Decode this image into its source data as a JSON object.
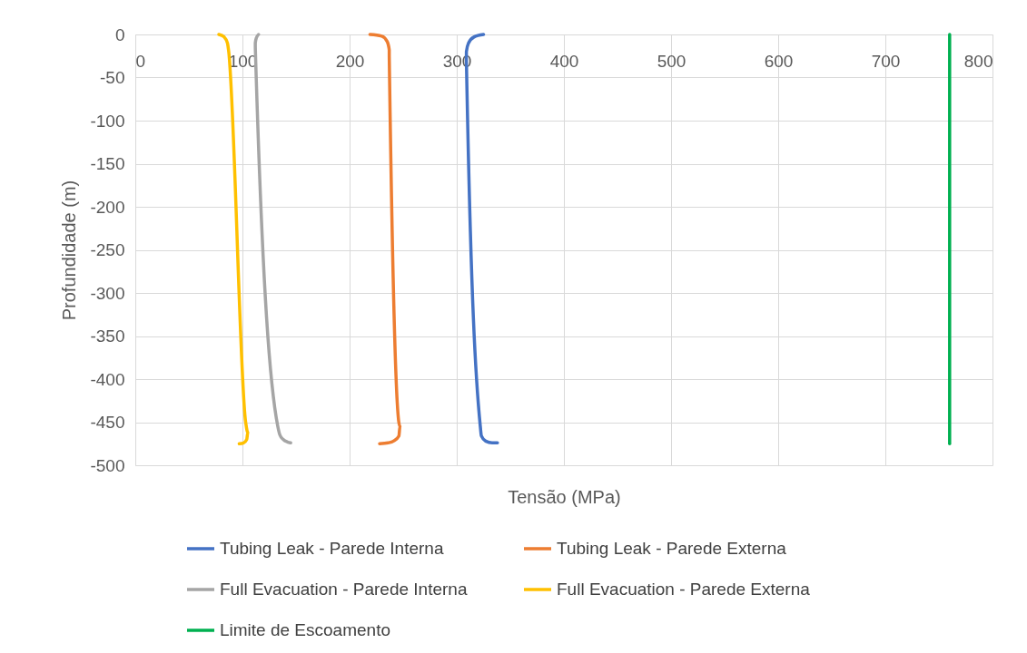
{
  "chart_data": {
    "type": "line",
    "xlabel": "Tensão (MPa)",
    "ylabel": "Profundidade (m)",
    "xlim": [
      0,
      800
    ],
    "xticks": [
      0,
      100,
      200,
      300,
      400,
      500,
      600,
      700,
      800
    ],
    "ylim": [
      -500,
      0
    ],
    "yticks": [
      -500,
      -450,
      -400,
      -350,
      -300,
      -250,
      -200,
      -150,
      -100,
      -50,
      0
    ],
    "grid": true,
    "legend": "bottom",
    "marker": "none",
    "line_style": "solid",
    "series": [
      {
        "name": "Tubing Leak - Parede Interna",
        "color": "#4472c4",
        "x": [
          325,
          316,
          311,
          309,
          309,
          322,
          323,
          327,
          333,
          338
        ],
        "values": [
          0,
          -3,
          -10,
          -20,
          -30,
          -455,
          -466,
          -472,
          -474,
          -474
        ]
      },
      {
        "name": "Tubing Leak - Parede Externa",
        "color": "#ed7d31",
        "x": [
          219,
          230,
          235,
          237,
          237,
          247,
          246,
          241,
          236,
          228
        ],
        "values": [
          0,
          -2,
          -8,
          -18,
          -25,
          -455,
          -466,
          -472,
          -474,
          -475
        ]
      },
      {
        "name": "Full Evacuation - Parede Interna",
        "color": "#a5a5a5",
        "x": [
          115,
          113,
          112,
          112,
          133,
          135,
          138,
          142,
          145
        ],
        "values": [
          0,
          -4,
          -10,
          -15,
          -455,
          -465,
          -470,
          -473,
          -474
        ]
      },
      {
        "name": "Full Evacuation - Parede Externa",
        "color": "#ffc000",
        "x": [
          78,
          83,
          86,
          87,
          103,
          105,
          104,
          101,
          97
        ],
        "values": [
          0,
          -3,
          -10,
          -18,
          -450,
          -462,
          -470,
          -474,
          -475
        ]
      },
      {
        "name": "Limite de Escoamento",
        "color": "#00b050",
        "x": [
          760,
          760
        ],
        "values": [
          0,
          -475
        ]
      }
    ]
  }
}
